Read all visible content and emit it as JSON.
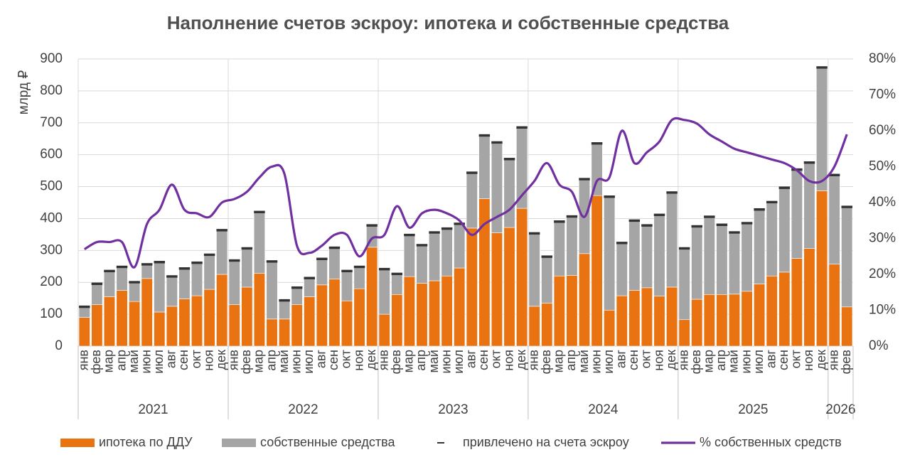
{
  "chart_data": {
    "type": "bar",
    "stacked": true,
    "title": "Наполнение счетов эскроу: ипотека и собственные средства",
    "y_label": "млрд ₽",
    "categories": [
      "янв",
      "фев",
      "мар",
      "апр",
      "май",
      "июн",
      "июл",
      "авг",
      "сен",
      "окт",
      "ноя",
      "дек",
      "янв",
      "фев",
      "мар",
      "апр",
      "май",
      "июн",
      "июл",
      "авг",
      "сен",
      "окт",
      "ноя",
      "дек",
      "янв",
      "фев",
      "мар",
      "апр",
      "май",
      "июн",
      "июл",
      "авг",
      "сен",
      "окт",
      "ноя",
      "дек",
      "янв",
      "фев",
      "мар",
      "апр",
      "май",
      "июн",
      "июл",
      "авг",
      "сен",
      "окт",
      "ноя",
      "дек",
      "янв",
      "фев",
      "мар",
      "апр",
      "май",
      "июн",
      "июл",
      "авг",
      "сен",
      "окт",
      "ноя",
      "дек",
      "янв",
      "фев"
    ],
    "years": [
      "2021",
      "2022",
      "2023",
      "2024",
      "2025",
      "2026"
    ],
    "ylim": [
      0,
      900
    ],
    "yticks": [
      0,
      100,
      200,
      300,
      400,
      500,
      600,
      700,
      800,
      900
    ],
    "y2lim": [
      0,
      80
    ],
    "y2ticks": [
      {
        "value": 0,
        "label": "0%"
      },
      {
        "value": 10,
        "label": "10%"
      },
      {
        "value": 20,
        "label": "20%"
      },
      {
        "value": 30,
        "label": "30%"
      },
      {
        "value": 40,
        "label": "40%"
      },
      {
        "value": 50,
        "label": "50%"
      },
      {
        "value": 60,
        "label": "60%"
      },
      {
        "value": 70,
        "label": "70%"
      },
      {
        "value": 80,
        "label": "80%"
      }
    ],
    "grid": true,
    "series": [
      {
        "name": "ипотека по ДДУ",
        "type": "bar",
        "color": "#e97311",
        "values": [
          90,
          130,
          155,
          175,
          140,
          212,
          107,
          125,
          148,
          158,
          178,
          225,
          130,
          185,
          228,
          85,
          85,
          130,
          155,
          192,
          210,
          142,
          180,
          310,
          100,
          162,
          218,
          197,
          205,
          220,
          245,
          370,
          462,
          355,
          372,
          432,
          125,
          135,
          220,
          222,
          290,
          472,
          113,
          158,
          175,
          183,
          157,
          185,
          83,
          147,
          162,
          162,
          163,
          172,
          195,
          220,
          232,
          275,
          306,
          487,
          257,
          123
        ]
      },
      {
        "name": "собственные средства",
        "type": "bar",
        "color": "#a5a5a5",
        "values": [
          30,
          62,
          77,
          70,
          57,
          41,
          153,
          90,
          92,
          100,
          105,
          135,
          135,
          118,
          189,
          177,
          55,
          50,
          55,
          78,
          95,
          90,
          65,
          65,
          138,
          61,
          127,
          116,
          148,
          145,
          135,
          170,
          195,
          280,
          211,
          250,
          225,
          142,
          167,
          181,
          230,
          160,
          352,
          162,
          215,
          192,
          251,
          293,
          220,
          225,
          240,
          215,
          190,
          210,
          230,
          228,
          261,
          275,
          266,
          383,
          276,
          310
        ]
      },
      {
        "name": "привлечено на счета эскроу",
        "type": "dash",
        "color": "#333333",
        "values": [
          120,
          192,
          232,
          245,
          197,
          253,
          260,
          215,
          240,
          258,
          283,
          360,
          265,
          303,
          417,
          262,
          140,
          180,
          210,
          270,
          305,
          232,
          245,
          375,
          238,
          223,
          345,
          313,
          353,
          365,
          380,
          540,
          657,
          635,
          583,
          682,
          350,
          277,
          387,
          403,
          520,
          632,
          465,
          320,
          390,
          375,
          408,
          478,
          303,
          372,
          402,
          377,
          353,
          382,
          425,
          448,
          493,
          550,
          572,
          870,
          533,
          433
        ]
      },
      {
        "name": "% собственных средств",
        "type": "line",
        "axis": "y2",
        "color": "#7030a0",
        "values": [
          27,
          29,
          29,
          29,
          22,
          34,
          38,
          45,
          38,
          37,
          36,
          40,
          41,
          43,
          47,
          50,
          48,
          28,
          26,
          28,
          31,
          31,
          25,
          30,
          31,
          39,
          33,
          37,
          38,
          37,
          35,
          31,
          34,
          36,
          38,
          42,
          46,
          51,
          45,
          43,
          36,
          46,
          47,
          60,
          51,
          54,
          57,
          63,
          63,
          62,
          59,
          57,
          55,
          54,
          53,
          52,
          51,
          49,
          46,
          46,
          50,
          59
        ]
      }
    ]
  }
}
